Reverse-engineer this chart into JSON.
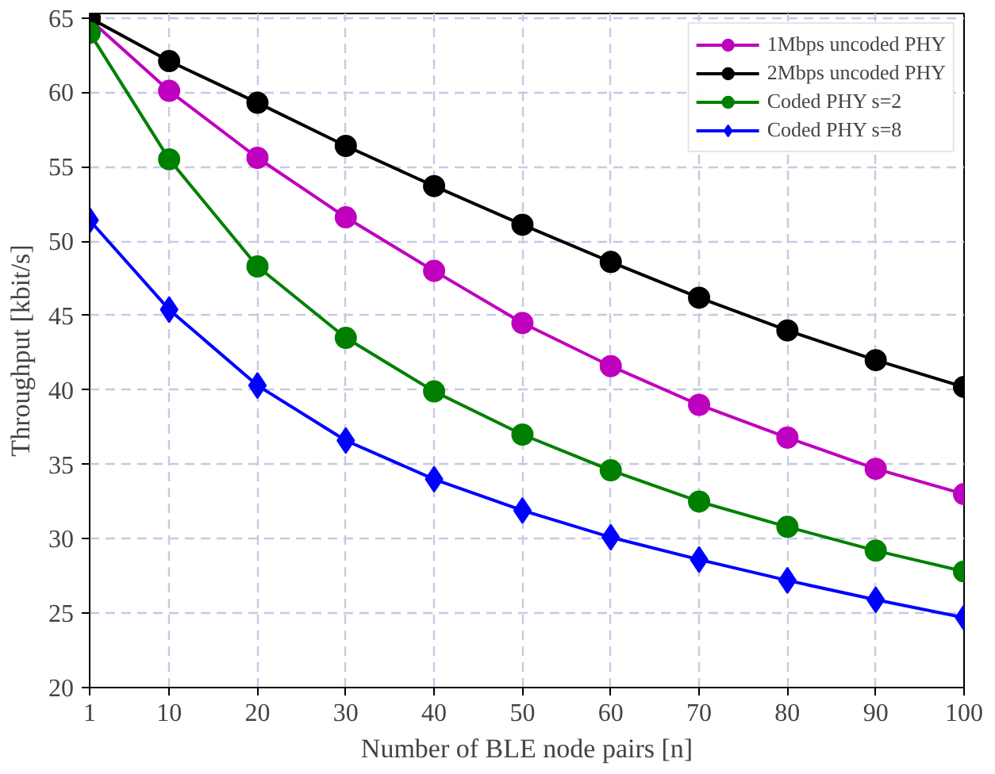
{
  "chart_data": {
    "type": "line",
    "xlabel": "Number of BLE node pairs [n]",
    "ylabel": "Throughput [kbit/s]",
    "x": [
      1,
      10,
      20,
      30,
      40,
      50,
      60,
      70,
      80,
      90,
      100
    ],
    "xlim": [
      1,
      100
    ],
    "xticks": [
      1,
      10,
      20,
      30,
      40,
      50,
      60,
      70,
      80,
      90,
      100
    ],
    "ylim": [
      20,
      65.3
    ],
    "yticks": [
      20,
      25,
      30,
      35,
      40,
      45,
      50,
      55,
      60,
      65
    ],
    "grid": true,
    "legend": "top right",
    "line_style": "solid",
    "series": [
      {
        "name": "1Mbps uncoded PHY",
        "color": "#bf00bf",
        "marker": "circle",
        "values": [
          64.9,
          60.1,
          55.6,
          51.6,
          48.0,
          44.5,
          41.6,
          39.0,
          36.8,
          34.7,
          33.0
        ]
      },
      {
        "name": "2Mbps uncoded PHY",
        "color": "#000000",
        "marker": "circle",
        "values": [
          65.0,
          62.1,
          59.3,
          56.4,
          53.7,
          51.1,
          48.6,
          46.2,
          44.0,
          42.0,
          40.2
        ]
      },
      {
        "name": "Coded PHY s=2",
        "color": "#008000",
        "marker": "circle",
        "values": [
          64.0,
          55.5,
          48.3,
          43.5,
          39.9,
          37.0,
          34.6,
          32.5,
          30.8,
          29.2,
          27.8
        ]
      },
      {
        "name": "Coded PHY s=8",
        "color": "#0000ff",
        "marker": "diamond",
        "values": [
          51.4,
          45.4,
          40.3,
          36.6,
          34.0,
          31.9,
          30.1,
          28.6,
          27.2,
          25.9,
          24.7
        ]
      }
    ]
  }
}
